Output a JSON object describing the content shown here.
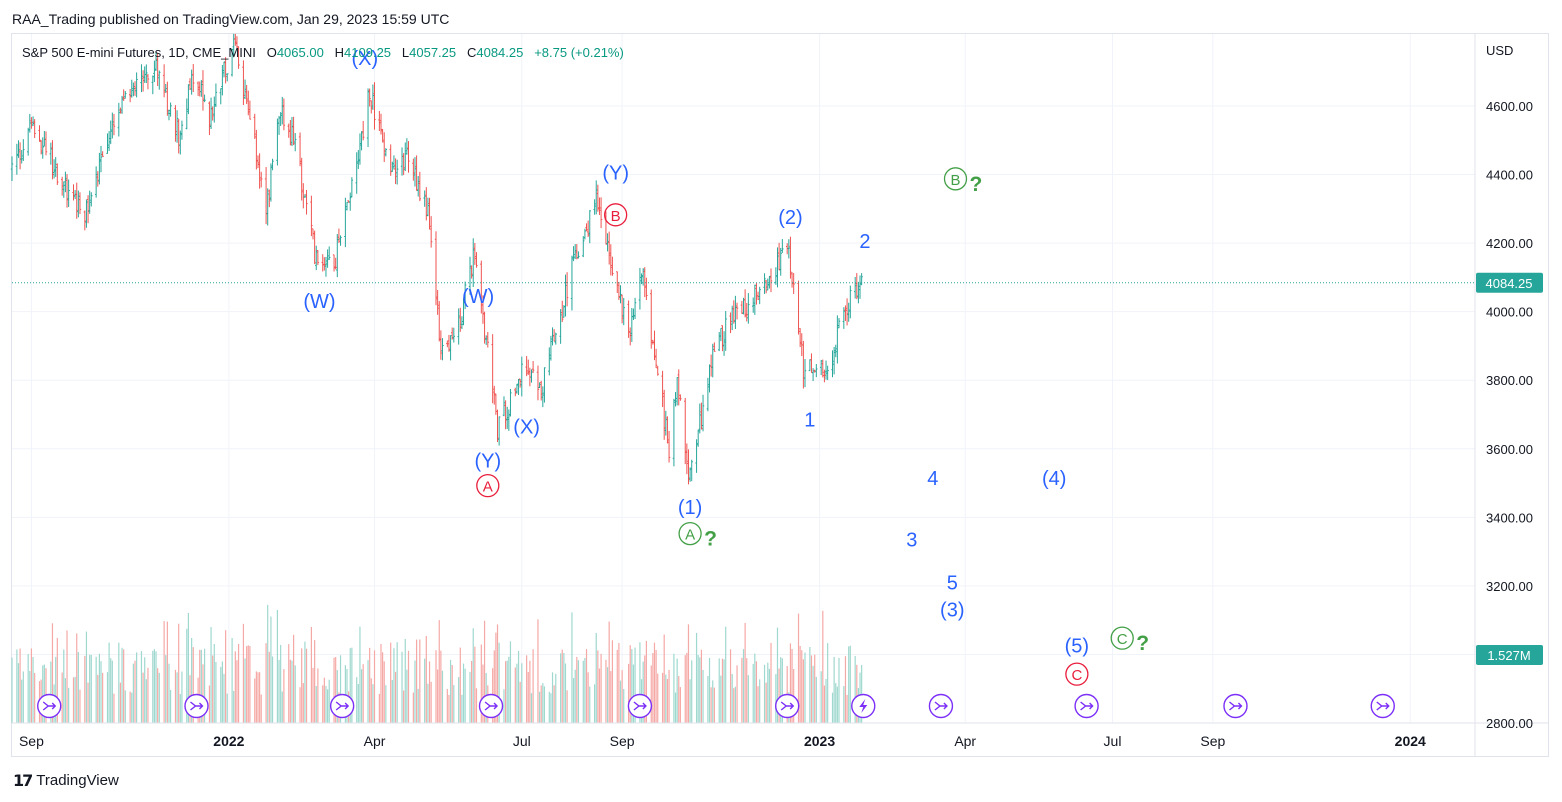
{
  "header": {
    "published_line": "RAA_Trading published on TradingView.com, Jan 29, 2023 15:59 UTC"
  },
  "symbol": {
    "title": "S&P 500 E-mini Futures, 1D, CME_MINI",
    "open_label": "O",
    "open": "4065.00",
    "high_label": "H",
    "high": "4109.25",
    "low_label": "L",
    "low": "4057.25",
    "close_label": "C",
    "close": "4084.25",
    "change": "+8.75 (+0.21%)"
  },
  "footer": {
    "brand": "TradingView"
  },
  "colors": {
    "up": "#26a69a",
    "down": "#ef5350",
    "wave_blue": "#2962ff",
    "wave_red": "#e91e3c",
    "wave_green": "#43a047",
    "event_purple": "#7b2ff7",
    "grid": "#f0f3fa"
  },
  "chart_data": {
    "type": "candlestick",
    "currency": "USD",
    "y_ticks": [
      2800,
      3000,
      3200,
      3400,
      3600,
      3800,
      4000,
      4200,
      4400,
      4600
    ],
    "y_tick_labels": [
      "2800.00",
      "",
      "3200.00",
      "3400.00",
      "3600.00",
      "3800.00",
      "4000.00",
      "4200.00",
      "4400.00",
      "4600.00"
    ],
    "ylim": [
      2800,
      4810
    ],
    "x_ticks": [
      "2021-09-01",
      "2022-01-01",
      "2022-04-01",
      "2022-07-01",
      "2022-09-01",
      "2023-01-01",
      "2023-04-01",
      "2023-07-01",
      "2023-09-01",
      "2024-01-01"
    ],
    "x_tick_labels": [
      "Sep",
      "2022",
      "Apr",
      "Jul",
      "Sep",
      "2023",
      "Apr",
      "Jul",
      "Sep",
      "2024"
    ],
    "xlim": [
      "2021-08-20",
      "2024-02-10"
    ],
    "last_price": 4084.25,
    "last_price_label": "4084.25",
    "volume_label": "1.527M",
    "price_path": [
      [
        "2021-08-20",
        4420
      ],
      [
        "2021-09-02",
        4535
      ],
      [
        "2021-09-10",
        4470
      ],
      [
        "2021-09-20",
        4380
      ],
      [
        "2021-10-04",
        4290
      ],
      [
        "2021-10-15",
        4460
      ],
      [
        "2021-11-05",
        4690
      ],
      [
        "2021-11-18",
        4700
      ],
      [
        "2021-12-01",
        4520
      ],
      [
        "2021-12-10",
        4700
      ],
      [
        "2021-12-20",
        4560
      ],
      [
        "2022-01-04",
        4790
      ],
      [
        "2022-01-10",
        4650
      ],
      [
        "2022-01-24",
        4300
      ],
      [
        "2022-02-02",
        4580
      ],
      [
        "2022-02-10",
        4500
      ],
      [
        "2022-02-24",
        4150
      ],
      [
        "2022-03-08",
        4160
      ],
      [
        "2022-03-29",
        4630
      ],
      [
        "2022-04-12",
        4420
      ],
      [
        "2022-04-21",
        4460
      ],
      [
        "2022-05-04",
        4300
      ],
      [
        "2022-05-12",
        3900
      ],
      [
        "2022-05-20",
        3900
      ],
      [
        "2022-06-02",
        4170
      ],
      [
        "2022-06-16",
        3660
      ],
      [
        "2022-07-01",
        3820
      ],
      [
        "2022-07-14",
        3790
      ],
      [
        "2022-08-01",
        4120
      ],
      [
        "2022-08-16",
        4320
      ],
      [
        "2022-09-06",
        3920
      ],
      [
        "2022-09-13",
        4140
      ],
      [
        "2022-09-30",
        3600
      ],
      [
        "2022-10-05",
        3790
      ],
      [
        "2022-10-13",
        3510
      ],
      [
        "2022-10-28",
        3900
      ],
      [
        "2022-11-10",
        3990
      ],
      [
        "2022-11-30",
        4090
      ],
      [
        "2022-12-13",
        4180
      ],
      [
        "2022-12-22",
        3840
      ],
      [
        "2023-01-05",
        3830
      ],
      [
        "2023-01-18",
        4020
      ],
      [
        "2023-01-27",
        4084
      ]
    ],
    "wave_labels": [
      {
        "text": "(X)",
        "date": "2022-03-26",
        "price": 4720,
        "color": "blue"
      },
      {
        "text": "(W)",
        "date": "2022-02-26",
        "price": 4010,
        "color": "blue"
      },
      {
        "text": "(W)",
        "date": "2022-06-04",
        "price": 4025,
        "color": "blue"
      },
      {
        "text": "(X)",
        "date": "2022-07-04",
        "price": 3645,
        "color": "blue"
      },
      {
        "text": "(Y)",
        "date": "2022-06-10",
        "price": 3545,
        "color": "blue"
      },
      {
        "text": "A",
        "date": "2022-06-10",
        "price": 3475,
        "color": "red",
        "circled": true
      },
      {
        "text": "B",
        "date": "2022-08-28",
        "price": 4265,
        "color": "red",
        "circled": true
      },
      {
        "text": "(Y)",
        "date": "2022-08-28",
        "price": 4385,
        "color": "blue"
      },
      {
        "text": "(2)",
        "date": "2022-12-14",
        "price": 4255,
        "color": "blue"
      },
      {
        "text": "2",
        "date": "2023-01-29",
        "price": 4185,
        "color": "blue"
      },
      {
        "text": "B",
        "date": "2023-03-26",
        "price": 4370,
        "color": "green",
        "circled": true,
        "question": "?"
      },
      {
        "text": "1",
        "date": "2022-12-26",
        "price": 3665,
        "color": "blue"
      },
      {
        "text": "(1)",
        "date": "2022-10-13",
        "price": 3410,
        "color": "blue"
      },
      {
        "text": "A",
        "date": "2022-10-13",
        "price": 3335,
        "color": "green",
        "circled": true,
        "question": "?"
      },
      {
        "text": "4",
        "date": "2023-03-12",
        "price": 3495,
        "color": "blue"
      },
      {
        "text": "(4)",
        "date": "2023-05-26",
        "price": 3495,
        "color": "blue"
      },
      {
        "text": "3",
        "date": "2023-02-27",
        "price": 3315,
        "color": "blue"
      },
      {
        "text": "5",
        "date": "2023-03-24",
        "price": 3190,
        "color": "blue"
      },
      {
        "text": "(3)",
        "date": "2023-03-24",
        "price": 3110,
        "color": "blue"
      },
      {
        "text": "(5)",
        "date": "2023-06-09",
        "price": 3005,
        "color": "blue"
      },
      {
        "text": "C",
        "date": "2023-06-09",
        "price": 2925,
        "color": "red",
        "circled": true
      },
      {
        "text": "C",
        "date": "2023-07-07",
        "price": 3030,
        "color": "green",
        "circled": true,
        "question": "?"
      }
    ],
    "event_markers": [
      "2021-09-12",
      "2021-12-12",
      "2022-03-12",
      "2022-06-12",
      "2022-09-12",
      "2022-12-12",
      "2023-01-28",
      "2023-03-17",
      "2023-06-15",
      "2023-09-15",
      "2023-12-15"
    ]
  }
}
